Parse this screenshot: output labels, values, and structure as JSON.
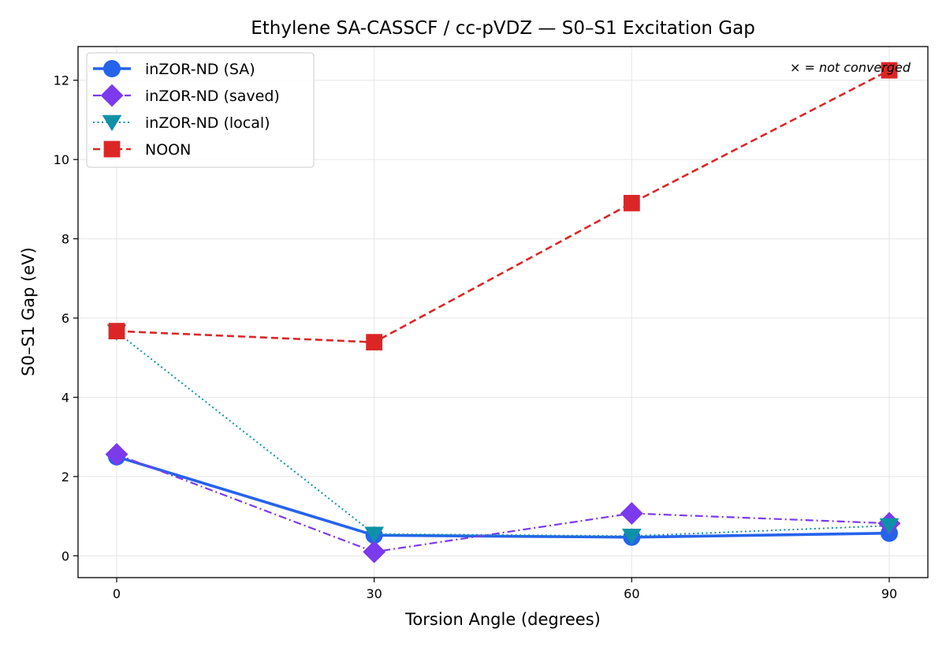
{
  "chart_data": {
    "type": "line",
    "title": "Ethylene SA-CASSCF / cc-pVDZ — S0–S1 Excitation Gap",
    "xlabel": "Torsion Angle (degrees)",
    "ylabel": "S0–S1 Gap (eV)",
    "x": [
      0,
      30,
      60,
      90
    ],
    "x_ticks": [
      "0",
      "30",
      "60",
      "90"
    ],
    "y_ticks": [
      "0",
      "2",
      "4",
      "6",
      "8",
      "10",
      "12"
    ],
    "xlim": [
      -4.5,
      94.5
    ],
    "ylim": [
      -0.55,
      12.85
    ],
    "grid": true,
    "legend_position": "top-left",
    "annotation": {
      "prefix": "× = ",
      "text": "not converged"
    },
    "series": [
      {
        "name": "inZOR-ND (SA)",
        "values": [
          2.5,
          0.52,
          0.47,
          0.57
        ],
        "color": "#2563eb",
        "line_style": "solid",
        "marker": "circle"
      },
      {
        "name": "inZOR-ND (saved)",
        "values": [
          2.56,
          0.1,
          1.07,
          0.82
        ],
        "color": "#7c3aed",
        "line_style": "dashdot",
        "marker": "diamond"
      },
      {
        "name": "inZOR-ND (local)",
        "values": [
          5.65,
          0.55,
          0.5,
          0.76
        ],
        "color": "#0e91a8",
        "line_style": "dotted",
        "marker": "triangle-down"
      },
      {
        "name": "NOON",
        "values": [
          5.67,
          5.39,
          8.9,
          12.25
        ],
        "color": "#dc2626",
        "line_style": "dashed",
        "marker": "square"
      }
    ]
  }
}
